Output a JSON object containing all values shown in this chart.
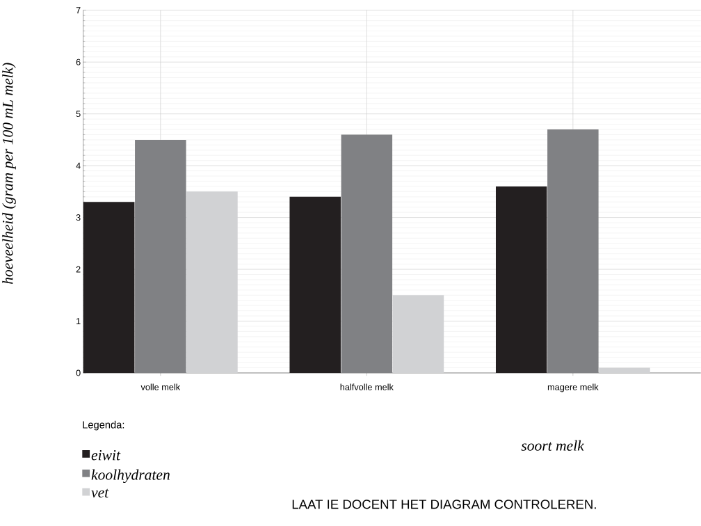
{
  "chart_data": {
    "type": "bar",
    "xlabel": "soort melk",
    "ylabel": "hoeveelheid (gram per 100 mL melk)",
    "legend_title": "Legenda:",
    "categories": [
      "volle melk",
      "halfvolle melk",
      "magere melk"
    ],
    "series": [
      {
        "name": "eiwit",
        "color": "#231f20",
        "values": [
          3.3,
          3.4,
          3.6
        ]
      },
      {
        "name": "koolhydraten",
        "color": "#808184",
        "values": [
          4.5,
          4.6,
          4.7
        ]
      },
      {
        "name": "vet",
        "color": "#d1d2d4",
        "values": [
          3.5,
          1.5,
          0.1
        ]
      }
    ],
    "ylim": [
      0,
      7
    ],
    "yticks": [
      0,
      1,
      2,
      3,
      4,
      5,
      6,
      7
    ],
    "grid": true,
    "legend": "bottom left",
    "annotations": [
      "LAAT IE DOCENT HET DIAGRAM CONTROLEREN."
    ]
  }
}
